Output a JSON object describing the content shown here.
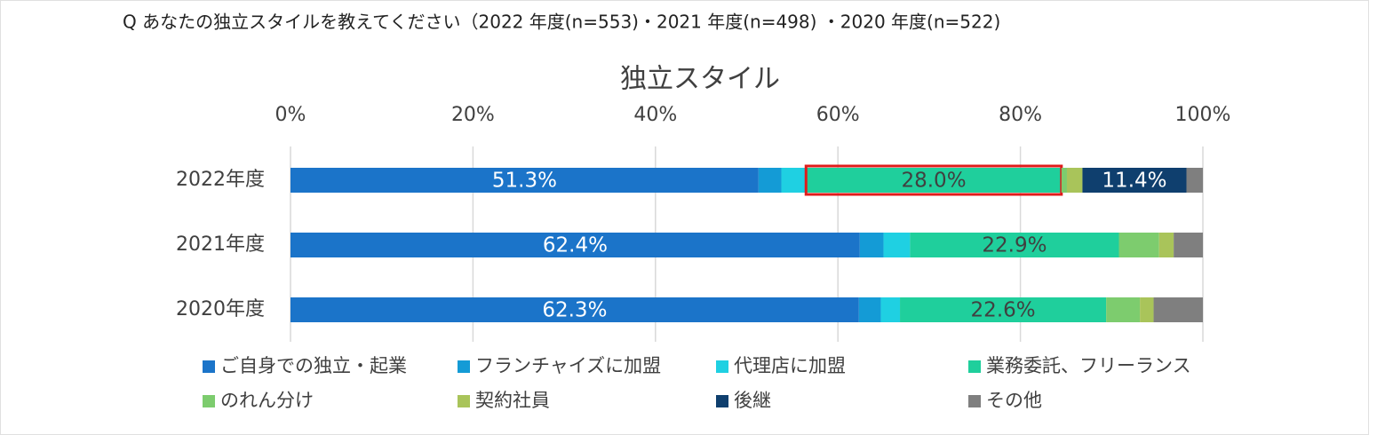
{
  "question": "Q あなたの独立スタイルを教えてください（2022 年度(n=553)・2021 年度(n=498) ・2020 年度(n=522)",
  "chart_data": {
    "type": "stacked-bar-horizontal",
    "title": "独立スタイル",
    "categories": [
      "2022年度",
      "2021年度",
      "2020年度"
    ],
    "series": [
      {
        "name": "ご自身での独立・起業",
        "color": "#1b74c9",
        "values": [
          51.3,
          62.4,
          62.3
        ],
        "value_labels": [
          "51.3%",
          "62.4%",
          "62.3%"
        ]
      },
      {
        "name": "フランチャイズに加盟",
        "color": "#149bd6",
        "values": [
          2.5,
          2.6,
          2.4
        ]
      },
      {
        "name": "代理店に加盟",
        "color": "#1fd0e2",
        "values": [
          2.7,
          2.9,
          2.1
        ]
      },
      {
        "name": "業務委託、フリーランス",
        "color": "#1fcf9c",
        "values": [
          28.0,
          22.9,
          22.6
        ],
        "value_labels": [
          "28.0%",
          "22.9%",
          "22.6%"
        ]
      },
      {
        "name": "のれん分け",
        "color": "#7dcc6e",
        "values": [
          0.6,
          4.4,
          3.7
        ]
      },
      {
        "name": "契約社員",
        "color": "#a9c45a",
        "values": [
          1.7,
          1.6,
          1.5
        ]
      },
      {
        "name": "後継",
        "color": "#0f3f6e",
        "values": [
          11.4,
          0,
          0
        ],
        "value_labels": [
          "11.4%",
          null,
          null
        ]
      },
      {
        "name": "その他",
        "color": "#7f7f7f",
        "values": [
          1.8,
          3.2,
          5.4
        ]
      }
    ],
    "xlim": [
      0,
      100
    ],
    "xticks": [
      {
        "value": 0,
        "label": "0%"
      },
      {
        "value": 20,
        "label": "20%"
      },
      {
        "value": 40,
        "label": "40%"
      },
      {
        "value": 60,
        "label": "60%"
      },
      {
        "value": 80,
        "label": "80%"
      },
      {
        "value": 100,
        "label": "100%"
      }
    ],
    "grid": true
  }
}
